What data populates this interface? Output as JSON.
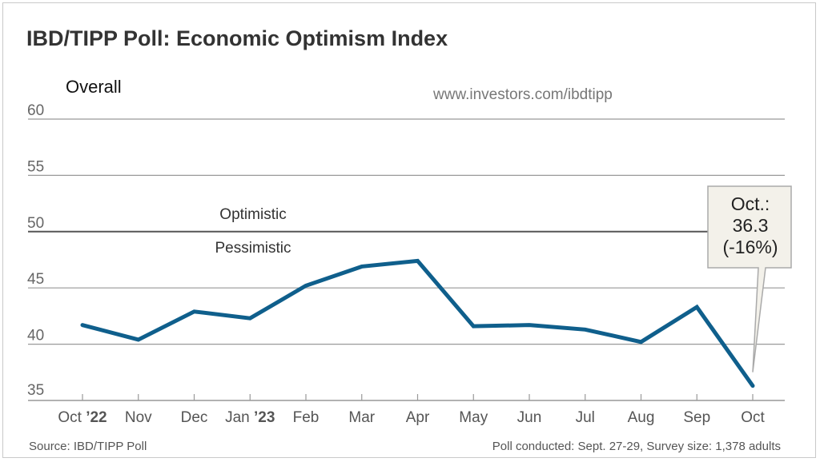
{
  "chart_data": {
    "type": "line",
    "title": "IBD/TIPP Poll: Economic Optimism Index",
    "subtitle": "Overall",
    "url": "www.investors.com/ibdtipp",
    "categories": [
      {
        "month": "Oct",
        "year": "’22"
      },
      {
        "month": "Nov",
        "year": ""
      },
      {
        "month": "Dec",
        "year": ""
      },
      {
        "month": "Jan",
        "year": "’23"
      },
      {
        "month": "Feb",
        "year": ""
      },
      {
        "month": "Mar",
        "year": ""
      },
      {
        "month": "Apr",
        "year": ""
      },
      {
        "month": "May",
        "year": ""
      },
      {
        "month": "Jun",
        "year": ""
      },
      {
        "month": "Jul",
        "year": ""
      },
      {
        "month": "Aug",
        "year": ""
      },
      {
        "month": "Sep",
        "year": ""
      },
      {
        "month": "Oct",
        "year": ""
      }
    ],
    "values": [
      41.7,
      40.4,
      42.9,
      42.3,
      45.2,
      46.9,
      47.4,
      41.6,
      41.7,
      41.3,
      40.2,
      43.3,
      36.3
    ],
    "ylim": [
      35,
      60
    ],
    "yticks": [
      35,
      40,
      45,
      50,
      55,
      60
    ],
    "grid": true,
    "reference_line": {
      "value": 50,
      "above_label": "Optimistic",
      "below_label": "Pessimistic"
    },
    "callout": {
      "lines": [
        "Oct.:",
        "36.3",
        "(-16%)"
      ]
    },
    "line_color": "#0f5f8c",
    "source": "Source: IBD/TIPP Poll",
    "note": "Poll conducted: Sept. 27-29,  Survey size: 1,378 adults"
  }
}
